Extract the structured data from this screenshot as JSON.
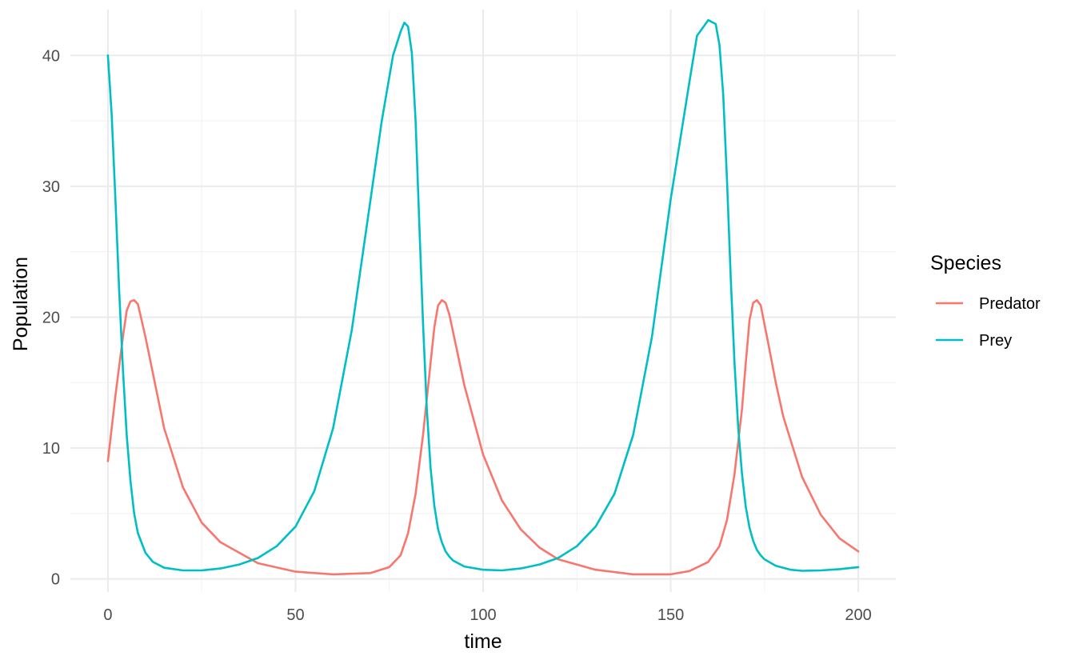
{
  "chart_data": {
    "type": "line",
    "title": "",
    "xlabel": "time",
    "ylabel": "Population",
    "xlim": [
      -10,
      210
    ],
    "ylim": [
      -1,
      43.5
    ],
    "x_ticks": [
      0,
      50,
      100,
      150,
      200
    ],
    "x_tick_labels": [
      "0",
      "50",
      "100",
      "150",
      "200"
    ],
    "y_ticks": [
      0,
      10,
      20,
      30,
      40
    ],
    "y_tick_labels": [
      "0",
      "10",
      "20",
      "30",
      "40"
    ],
    "grid": true,
    "legend": {
      "title": "Species",
      "placement": "right"
    },
    "series": [
      {
        "name": "Predator",
        "color": "#F8766D",
        "x": [
          0,
          2,
          4,
          5,
          6,
          7,
          8,
          10,
          15,
          20,
          25,
          30,
          40,
          50,
          60,
          70,
          75,
          78,
          80,
          82,
          84,
          86,
          87,
          88,
          89,
          90,
          91,
          93,
          95,
          100,
          105,
          110,
          115,
          120,
          130,
          140,
          150,
          155,
          160,
          163,
          165,
          167,
          169,
          170,
          171,
          172,
          173,
          174,
          176,
          178,
          180,
          185,
          190,
          195,
          200
        ],
        "y": [
          9.0,
          14.0,
          18.5,
          20.5,
          21.2,
          21.3,
          21.0,
          18.5,
          11.5,
          7.0,
          4.3,
          2.8,
          1.2,
          0.55,
          0.35,
          0.45,
          0.9,
          1.8,
          3.5,
          6.5,
          11.0,
          16.5,
          19.2,
          20.9,
          21.3,
          21.1,
          20.2,
          17.5,
          14.8,
          9.5,
          6.0,
          3.8,
          2.4,
          1.5,
          0.7,
          0.35,
          0.35,
          0.6,
          1.3,
          2.5,
          4.5,
          8.0,
          13.0,
          16.5,
          19.8,
          21.1,
          21.3,
          20.9,
          18.0,
          15.0,
          12.4,
          7.8,
          4.9,
          3.1,
          2.1
        ]
      },
      {
        "name": "Prey",
        "color": "#00BFC4",
        "x": [
          0,
          1,
          2,
          3,
          4,
          5,
          6,
          7,
          8,
          10,
          12,
          15,
          20,
          25,
          30,
          35,
          40,
          45,
          50,
          55,
          60,
          65,
          70,
          73,
          76,
          78,
          79,
          80,
          81,
          82,
          83,
          84,
          85,
          86,
          87,
          88,
          89,
          90,
          91,
          92,
          95,
          100,
          105,
          110,
          115,
          120,
          125,
          130,
          135,
          140,
          145,
          150,
          155,
          157,
          160,
          162,
          163,
          164,
          165,
          166,
          167,
          168,
          169,
          170,
          171,
          172,
          173,
          174,
          175,
          178,
          182,
          185,
          190,
          195,
          200
        ],
        "y": [
          40.0,
          35.5,
          29.0,
          22.0,
          16.0,
          11.0,
          7.5,
          5.0,
          3.5,
          2.0,
          1.3,
          0.85,
          0.65,
          0.65,
          0.8,
          1.1,
          1.6,
          2.5,
          4.0,
          6.7,
          11.5,
          19.0,
          29.0,
          35.0,
          40.0,
          41.8,
          42.5,
          42.2,
          40.2,
          35.0,
          27.0,
          19.5,
          13.0,
          8.5,
          5.6,
          3.8,
          2.8,
          2.1,
          1.7,
          1.4,
          0.95,
          0.7,
          0.65,
          0.8,
          1.1,
          1.6,
          2.5,
          4.0,
          6.5,
          11.0,
          18.5,
          29.0,
          38.0,
          41.5,
          42.7,
          42.4,
          40.8,
          37.0,
          30.5,
          23.0,
          16.5,
          11.5,
          8.0,
          5.5,
          3.9,
          2.9,
          2.2,
          1.8,
          1.5,
          1.0,
          0.7,
          0.62,
          0.65,
          0.75,
          0.9
        ]
      }
    ]
  }
}
